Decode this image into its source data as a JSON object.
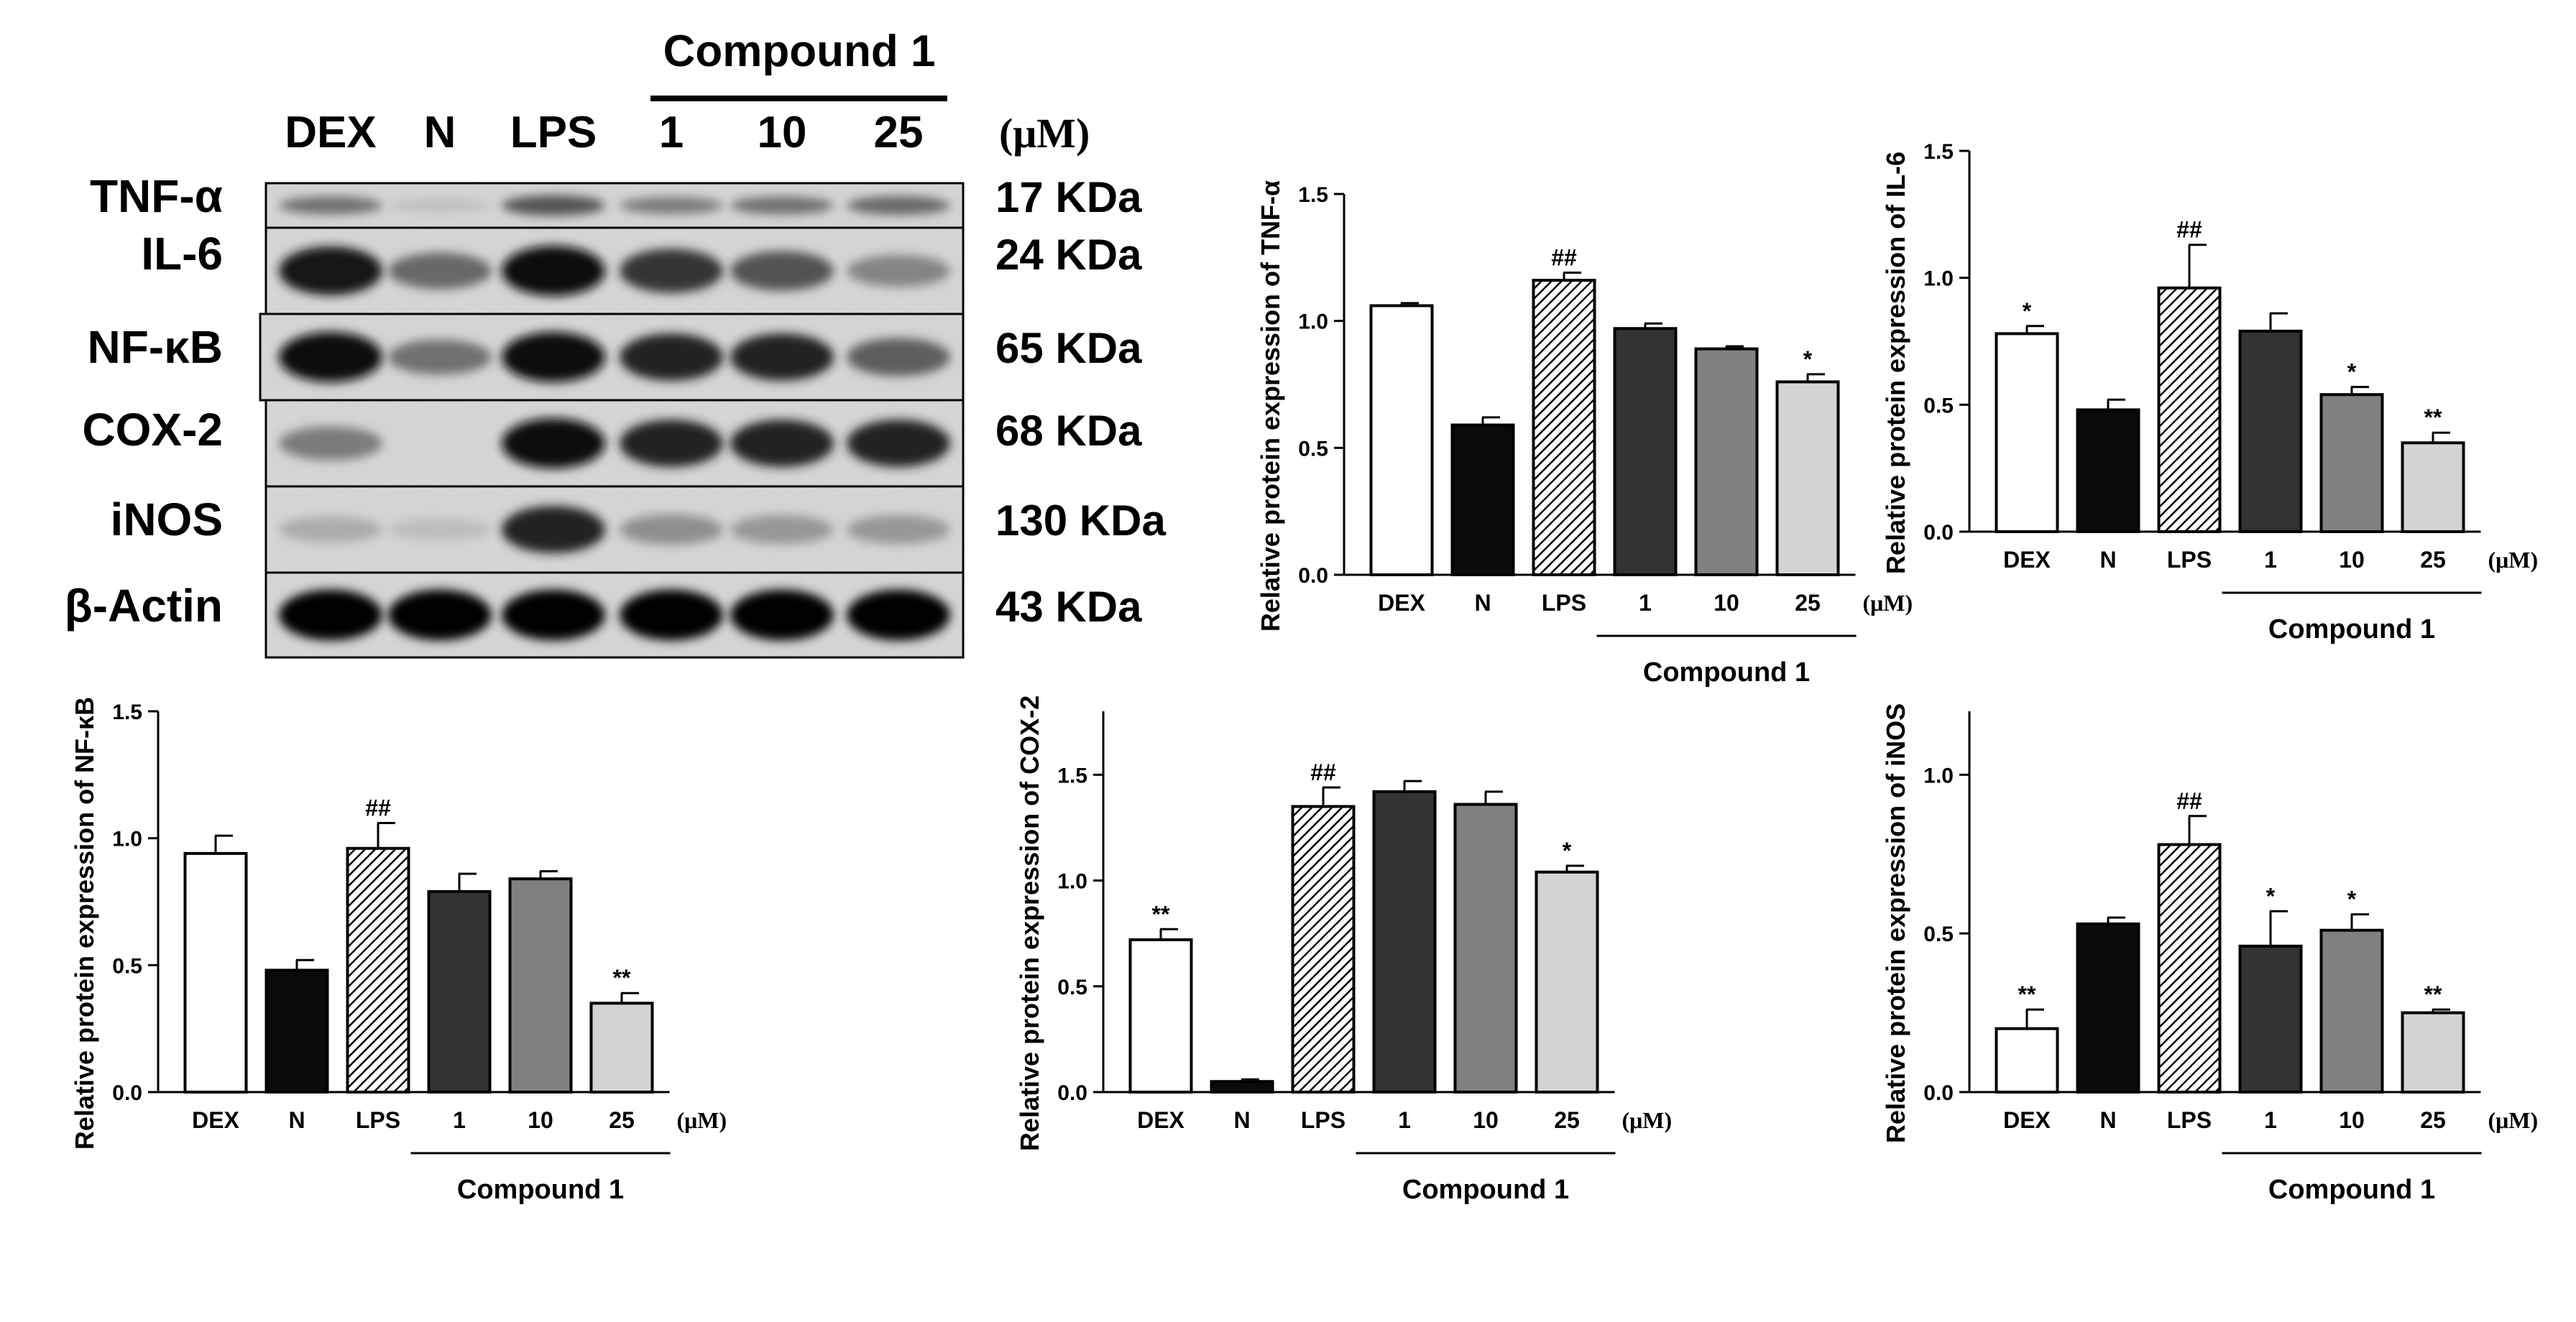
{
  "blot": {
    "group_label": "Compound 1",
    "lanes": [
      "DEX",
      "N",
      "LPS",
      "1",
      "10",
      "25"
    ],
    "unit": "(μM)",
    "proteins": [
      {
        "name": "TNF-α",
        "size": "17 KDa",
        "intensity": [
          0.45,
          0.05,
          0.6,
          0.4,
          0.45,
          0.5
        ]
      },
      {
        "name": "IL-6",
        "size": "24 KDa",
        "intensity": [
          0.9,
          0.5,
          0.95,
          0.75,
          0.6,
          0.35
        ]
      },
      {
        "name": "NF-κB",
        "size": "65 KDa",
        "intensity": [
          0.95,
          0.45,
          0.95,
          0.85,
          0.85,
          0.55
        ]
      },
      {
        "name": "COX-2",
        "size": "68 KDa",
        "intensity": [
          0.4,
          0.0,
          0.95,
          0.85,
          0.85,
          0.85
        ]
      },
      {
        "name": "iNOS",
        "size": "130 KDa",
        "intensity": [
          0.15,
          0.05,
          0.85,
          0.3,
          0.25,
          0.25
        ]
      },
      {
        "name": "β-Actin",
        "size": "43 KDa",
        "intensity": [
          1.0,
          1.0,
          1.0,
          1.0,
          1.0,
          1.0
        ]
      }
    ]
  },
  "colors": {
    "DEX": "#ffffff",
    "N": "#0a0a0a",
    "LPS": "hatch",
    "1": "#333333",
    "10": "#808080",
    "25": "#d3d3d3"
  },
  "chart_data": [
    {
      "type": "bar",
      "categories": [
        "DEX",
        "N",
        "LPS",
        "1",
        "10",
        "25"
      ],
      "values": [
        1.06,
        0.59,
        1.16,
        0.97,
        0.89,
        0.76
      ],
      "errors": [
        0.01,
        0.03,
        0.03,
        0.02,
        0.01,
        0.03
      ],
      "annotations": [
        "",
        "",
        "##",
        "",
        "",
        "*"
      ],
      "ylabel": "Relative protein expression of TNF-α",
      "ylim": [
        0,
        1.5
      ],
      "yticks": [
        "0.0",
        "0.5",
        "1.0",
        "1.5"
      ],
      "group_label": "Compound 1",
      "unit_label": "(μM)"
    },
    {
      "type": "bar",
      "categories": [
        "DEX",
        "N",
        "LPS",
        "1",
        "10",
        "25"
      ],
      "values": [
        0.78,
        0.48,
        0.96,
        0.79,
        0.54,
        0.35
      ],
      "errors": [
        0.03,
        0.04,
        0.17,
        0.07,
        0.03,
        0.04
      ],
      "annotations": [
        "*",
        "",
        "##",
        "",
        "*",
        "**"
      ],
      "ylabel": "Relative protein expression of IL-6",
      "ylim": [
        0,
        1.5
      ],
      "yticks": [
        "0.0",
        "0.5",
        "1.0",
        "1.5"
      ],
      "group_label": "Compound 1",
      "unit_label": "(μM)"
    },
    {
      "type": "bar",
      "categories": [
        "DEX",
        "N",
        "LPS",
        "1",
        "10",
        "25"
      ],
      "values": [
        0.94,
        0.48,
        0.96,
        0.79,
        0.84,
        0.35
      ],
      "errors": [
        0.07,
        0.04,
        0.1,
        0.07,
        0.03,
        0.04
      ],
      "annotations": [
        "",
        "",
        "##",
        "",
        "",
        "**"
      ],
      "ylabel": "Relative protein expression of NF-κB",
      "ylim": [
        0,
        1.5
      ],
      "yticks": [
        "0.0",
        "0.5",
        "1.0",
        "1.5"
      ],
      "group_label": "Compound 1",
      "unit_label": "(μM)"
    },
    {
      "type": "bar",
      "categories": [
        "DEX",
        "N",
        "LPS",
        "1",
        "10",
        "25"
      ],
      "values": [
        0.72,
        0.05,
        1.35,
        1.42,
        1.36,
        1.04
      ],
      "errors": [
        0.05,
        0.01,
        0.09,
        0.05,
        0.06,
        0.03
      ],
      "annotations": [
        "**",
        "",
        "##",
        "",
        "",
        "*"
      ],
      "ylabel": "Relative protein expression of COX-2",
      "ylim": [
        0,
        1.8
      ],
      "yticks": [
        "0.0",
        "0.5",
        "1.0",
        "1.5"
      ],
      "group_label": "Compound 1",
      "unit_label": "(μM)"
    },
    {
      "type": "bar",
      "categories": [
        "DEX",
        "N",
        "LPS",
        "1",
        "10",
        "25"
      ],
      "values": [
        0.2,
        0.53,
        0.78,
        0.46,
        0.51,
        0.25
      ],
      "errors": [
        0.06,
        0.02,
        0.09,
        0.11,
        0.05,
        0.01
      ],
      "annotations": [
        "**",
        "",
        "##",
        "*",
        "*",
        "**"
      ],
      "ylabel": "Relative protein expression of iNOS",
      "ylim": [
        0,
        1.2
      ],
      "yticks": [
        "0.0",
        "0.5",
        "1.0"
      ],
      "group_label": "Compound 1",
      "unit_label": "(μM)"
    }
  ]
}
